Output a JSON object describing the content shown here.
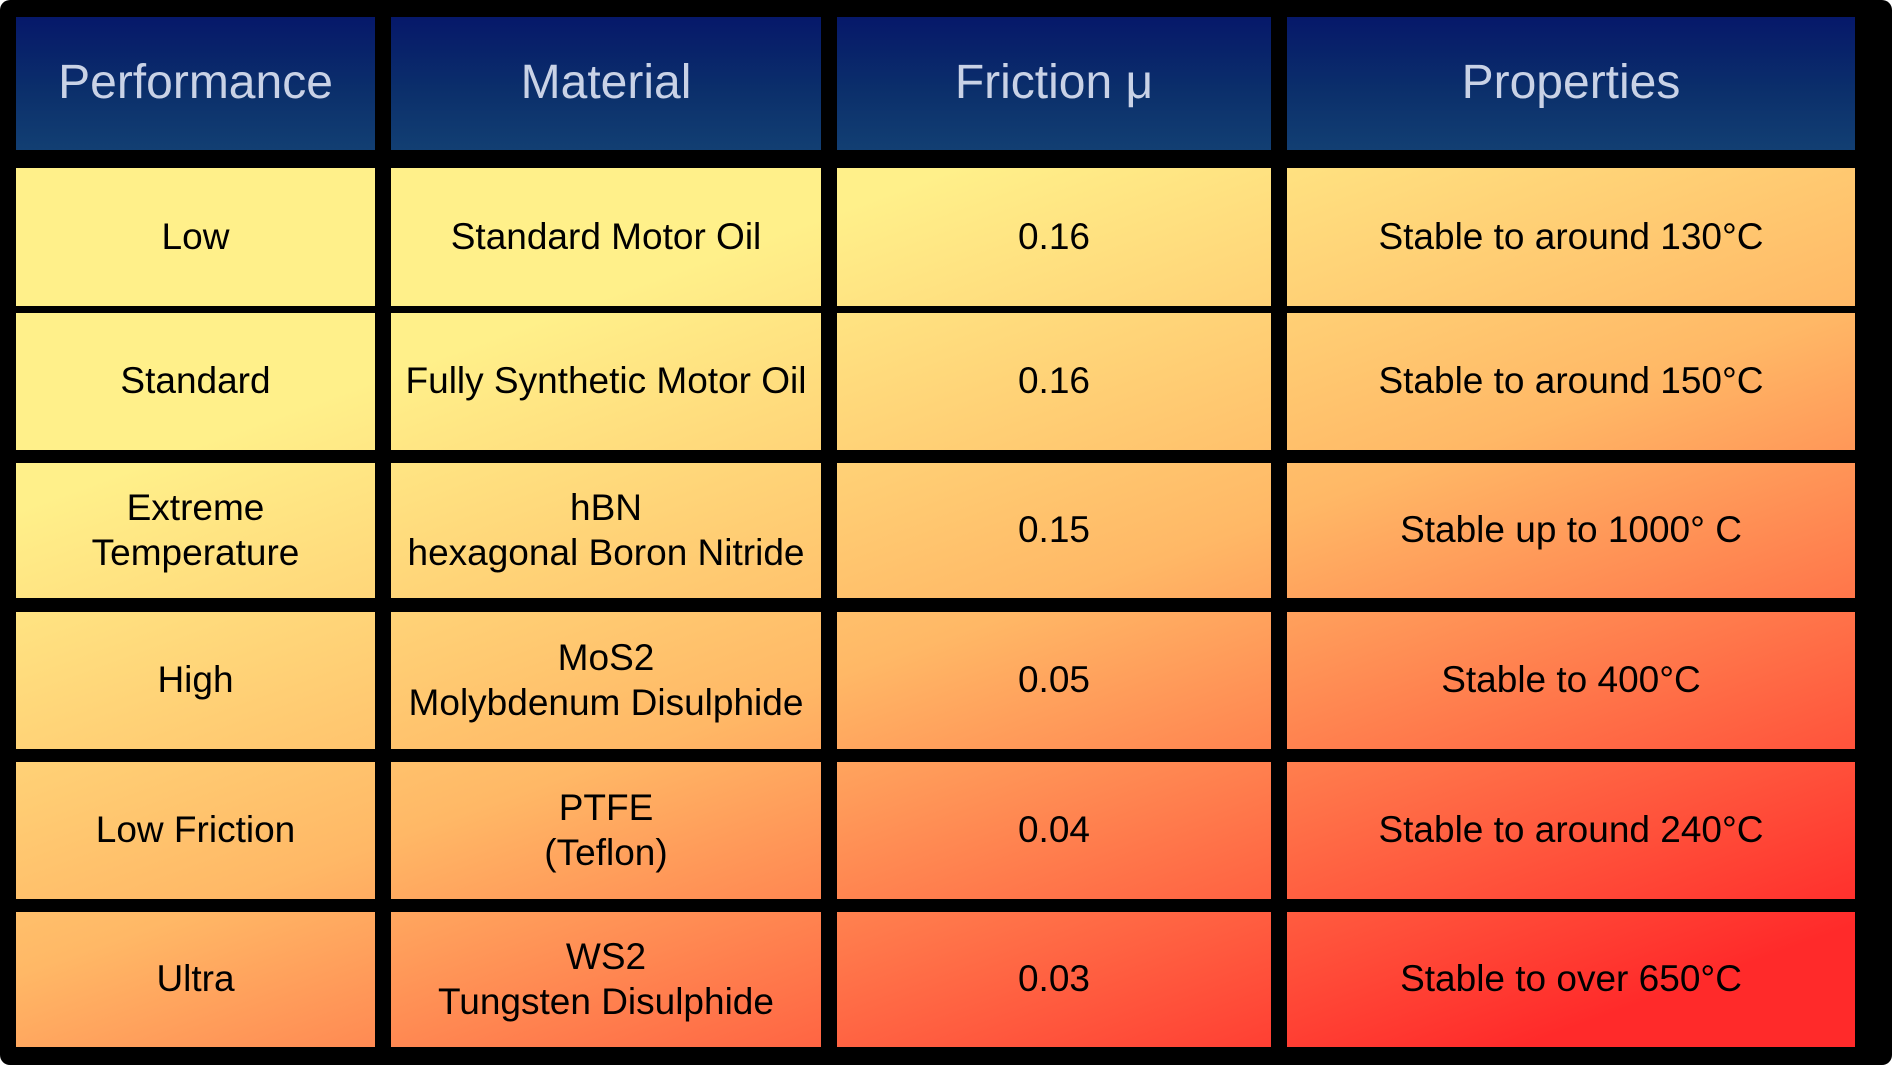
{
  "chart_data": {
    "type": "table",
    "columns": [
      "Performance",
      "Material",
      "Friction μ",
      "Properties"
    ],
    "rows": [
      {
        "performance": [
          "Low"
        ],
        "material": [
          "Standard Motor Oil"
        ],
        "friction": 0.16,
        "friction_text": "0.16",
        "properties": [
          "Stable to around 130°C"
        ]
      },
      {
        "performance": [
          "Standard"
        ],
        "material": [
          "Fully Synthetic Motor Oil"
        ],
        "friction": 0.16,
        "friction_text": "0.16",
        "properties": [
          "Stable to around 150°C"
        ]
      },
      {
        "performance": [
          "Extreme",
          "Temperature"
        ],
        "material": [
          "hBN",
          "hexagonal Boron Nitride"
        ],
        "friction": 0.15,
        "friction_text": "0.15",
        "properties": [
          "Stable up to 1000° C"
        ]
      },
      {
        "performance": [
          "High"
        ],
        "material": [
          "MoS2",
          "Molybdenum Disulphide"
        ],
        "friction": 0.05,
        "friction_text": "0.05",
        "properties": [
          "Stable to 400°C"
        ]
      },
      {
        "performance": [
          "Low Friction"
        ],
        "material": [
          "PTFE",
          "(Teflon)"
        ],
        "friction": 0.04,
        "friction_text": "0.04",
        "properties": [
          "Stable to around 240°C"
        ]
      },
      {
        "performance": [
          "Ultra"
        ],
        "material": [
          "WS2",
          "Tungsten Disulphide"
        ],
        "friction": 0.03,
        "friction_text": "0.03",
        "properties": [
          "Stable to over 650°C"
        ]
      }
    ]
  },
  "colors": {
    "frame": "#000000",
    "header_top": "#06186a",
    "header_bottom": "#123f73",
    "header_text": "#c9d2e6",
    "gradient_light": "#fff08a",
    "gradient_mid": "#ffb866",
    "gradient_dark": "#ff2a2a",
    "body_text": "#000000"
  }
}
